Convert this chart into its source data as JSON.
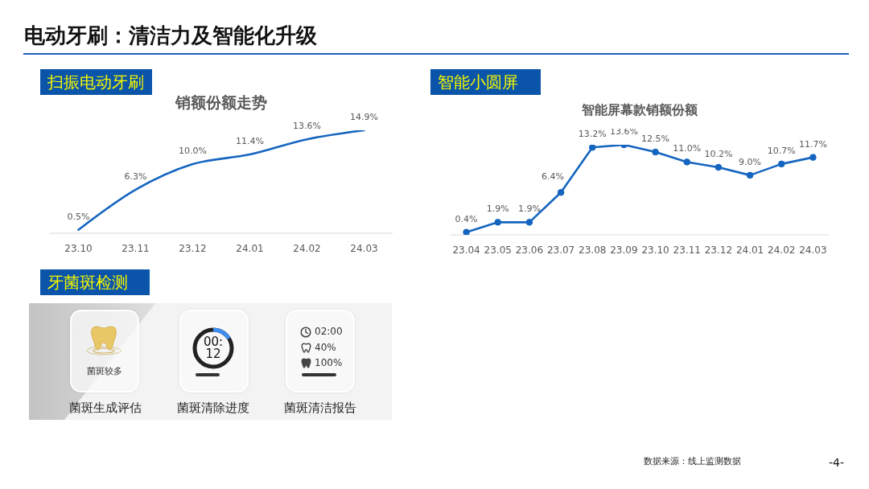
{
  "chart_data": [
    {
      "type": "other",
      "title": "电动牙刷：清洁力及智能化升级",
      "annotations": [
        "数据来源：线上监测数据",
        "-4-"
      ]
    },
    {
      "type": "line",
      "title": "扫振电动牙刷",
      "subtitle": "销额份额走势",
      "categories": [
        "23.10",
        "23.11",
        "23.12",
        "24.01",
        "24.02",
        "24.03"
      ],
      "values": [
        0.5,
        6.3,
        10.0,
        11.4,
        13.6,
        14.9
      ],
      "value_labels": [
        "0.5%",
        "6.3%",
        "10.0%",
        "11.4%",
        "13.6%",
        "14.9%"
      ],
      "color": "#1565c0",
      "tick_labels": "x"
    },
    {
      "type": "line",
      "title": "智能小圆屏",
      "subtitle": "智能屏幕款销额份额",
      "categories": [
        "23.04",
        "23.05",
        "23.06",
        "23.07",
        "23.08",
        "23.09",
        "23.10",
        "23.11",
        "23.12",
        "24.01",
        "24.02",
        "24.03"
      ],
      "values": [
        0.4,
        1.9,
        1.9,
        6.4,
        13.2,
        13.6,
        12.5,
        11.0,
        10.2,
        9.0,
        10.7,
        11.7
      ],
      "value_labels": [
        "0.4%",
        "1.9%",
        "1.9%",
        "6.4%",
        "13.2%",
        "13.6%",
        "12.5%",
        "11.0%",
        "10.2%",
        "9.0%",
        "10.7%",
        "11.7%"
      ],
      "color": "#1565c0",
      "marker": "circle",
      "tick_labels": "x"
    },
    {
      "type": "other",
      "title": "牙菌斑检测",
      "annotations": [
        "菌斑较多",
        "00:12",
        "02:00",
        "40%",
        "100%",
        "菌斑生成评估",
        "菌斑清除进度",
        "菌斑清洁报告"
      ]
    }
  ]
}
